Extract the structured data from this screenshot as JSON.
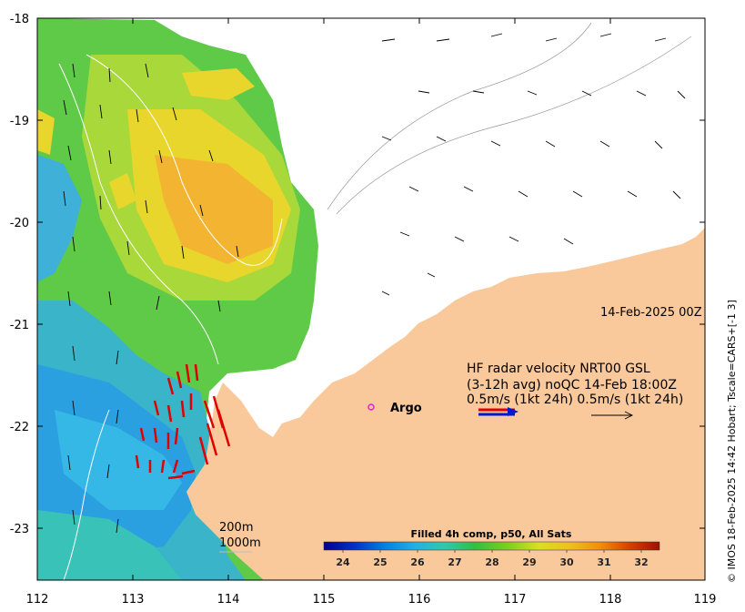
{
  "map": {
    "lon_ticks": [
      "112",
      "113",
      "114",
      "115",
      "116",
      "117",
      "118",
      "119"
    ],
    "lat_ticks": [
      "-18",
      "-19",
      "-20",
      "-21",
      "-22",
      "-23"
    ],
    "lon_range": [
      112,
      119
    ],
    "lat_range": [
      -23.5,
      -17.9
    ],
    "land_color": "#f9c99c",
    "ocean_color": "#ffffff"
  },
  "annotations": {
    "date": "14-Feb-2025 00Z",
    "hf_line1": "HF radar velocity  NRT00 GSL",
    "hf_line2": "(3-12h avg) noQC 14-Feb 18:00Z",
    "hf_line3": "0.5m/s (1kt 24h)   0.5m/s (1kt 24h)",
    "argo_label": "Argo",
    "depth_200": "200m",
    "depth_1000": "1000m",
    "credit": "© IMOS 18-Feb-2025 14:42 Hobart; Tscale=CARS+[-1 3]"
  },
  "colorbar": {
    "title": "Filled 4h comp, p50, All Sats",
    "ticks": [
      "24",
      "25",
      "26",
      "27",
      "28",
      "29",
      "30",
      "31",
      "32"
    ],
    "min": 23.6,
    "max": 32.6,
    "colors": [
      "#00008b",
      "#0030c8",
      "#0080e0",
      "#20b0e8",
      "#30c8b0",
      "#30c040",
      "#7cd020",
      "#d8e020",
      "#f0b020",
      "#e88010",
      "#d84000",
      "#a01000"
    ]
  },
  "icons": {
    "argo_marker": "argo-float-marker",
    "vector_arrow": "current-arrow-icon"
  }
}
